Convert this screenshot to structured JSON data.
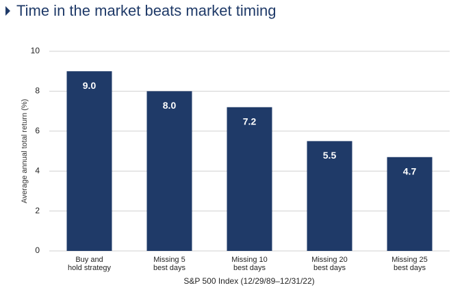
{
  "chart_data": {
    "type": "bar",
    "title": "Time in the market beats market timing",
    "y_label": "Average annual total return (%)",
    "x_label": "S&P 500 Index (12/29/89–12/31/22)",
    "categories": [
      "Buy and\nhold strategy",
      "Missing 5\nbest days",
      "Missing 10\nbest days",
      "Missing 20\nbest days",
      "Missing 25\nbest days"
    ],
    "values": [
      9.0,
      8.0,
      7.2,
      5.5,
      4.7
    ],
    "value_labels": [
      "9.0",
      "8.0",
      "7.2",
      "5.5",
      "4.7"
    ],
    "color": "#1f3a68",
    "ylim": [
      0,
      10
    ],
    "yticks": [
      0,
      2,
      4,
      6,
      8,
      10
    ],
    "grid": true
  }
}
